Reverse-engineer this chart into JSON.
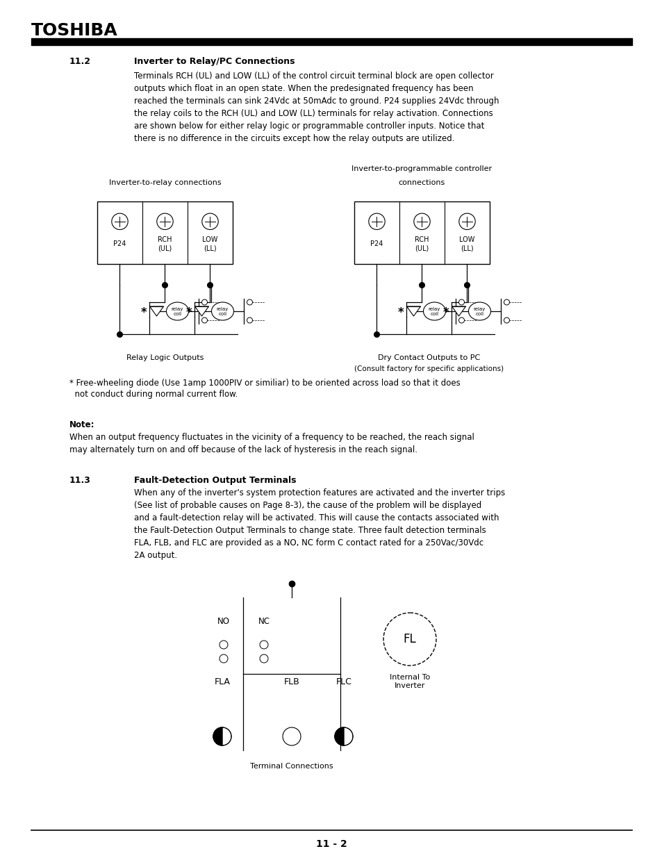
{
  "title": "TOSHIBA",
  "section_11_2_num": "11.2",
  "section_11_2_title": "Inverter to Relay/PC Connections",
  "section_11_2_body": "Terminals RCH (UL) and LOW (LL) of the control circuit terminal block are open collector\noutputs which float in an open state. When the predesignated frequency has been\nreached the terminals can sink 24Vdc at 50mAdc to ground. P24 supplies 24Vdc through\nthe relay coils to the RCH (UL) and LOW (LL) terminals for relay activation. Connections\nare shown below for either relay logic or programmable controller inputs. Notice that\nthere is no difference in the circuits except how the relay outputs are utilized.",
  "left_diagram_label": "Inverter-to-relay connections",
  "right_diagram_label_line1": "Inverter-to-programmable controller",
  "right_diagram_label_line2": "connections",
  "left_circuit_label": "Relay Logic Outputs",
  "right_circuit_label_line1": "Dry Contact Outputs to PC",
  "right_circuit_label_line2": "(Consult factory for specific applications)",
  "freewheeling_note_star": "* Free-wheeling diode (Use 1amp 1000PIV or similiar) to be oriented across load so that it does",
  "freewheeling_note_cont": "  not conduct during normal current flow.",
  "note_heading": "Note:",
  "note_text": "When an output frequency fluctuates in the vicinity of a frequency to be reached, the reach signal\nmay alternately turn on and off because of the lack of hysteresis in the reach signal.",
  "section_11_3_num": "11.3",
  "section_11_3_title": "Fault-Detection Output Terminals",
  "section_11_3_body": "When any of the inverter's system protection features are activated and the inverter trips\n(See list of probable causes on Page 8-3), the cause of the problem will be displayed\nand a fault-detection relay will be activated. This will cause the contacts associated with\nthe Fault-Detection Output Terminals to change state. Three fault detection terminals\nFLA, FLB, and FLC are provided as a NO, NC form C contact rated for a 250Vac/30Vdc\n2A output.",
  "fl_label": "FL",
  "internal_label": "Internal To\nInverter",
  "terminal_conn_label": "Terminal Connections",
  "page_number": "11 - 2",
  "bg_color": "#ffffff"
}
